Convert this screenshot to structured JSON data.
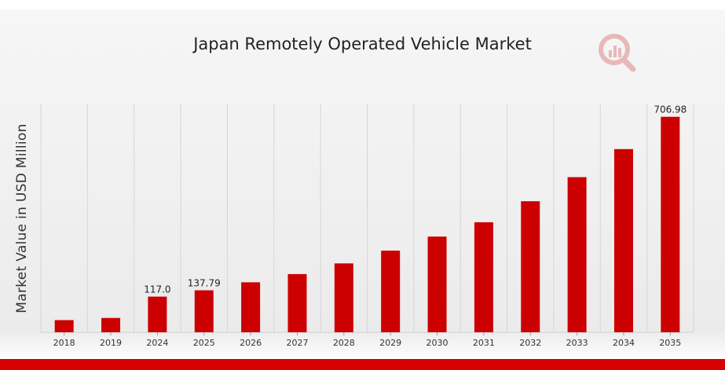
{
  "page": {
    "bar_color": "#cc0000",
    "accent_bar_color": "#d90000",
    "logo_icon": "chart-magnifier-logo"
  },
  "chart_data": {
    "type": "bar",
    "title": "Japan Remotely Operated Vehicle Market",
    "xlabel": "",
    "ylabel": "Market Value in USD Million",
    "categories": [
      "2018",
      "2019",
      "2024",
      "2025",
      "2026",
      "2027",
      "2028",
      "2029",
      "2030",
      "2031",
      "2032",
      "2033",
      "2034",
      "2035"
    ],
    "values": [
      40,
      47,
      117.0,
      137.79,
      164,
      191,
      226,
      268,
      314,
      361,
      430,
      509,
      601,
      706.98
    ],
    "data_labels": [
      "",
      "",
      "117.0",
      "137.79",
      "",
      "",
      "",
      "",
      "",
      "",
      "",
      "",
      "",
      "706.98"
    ],
    "ylim": [
      0,
      750
    ],
    "grid": "vertical",
    "legend": "none"
  }
}
